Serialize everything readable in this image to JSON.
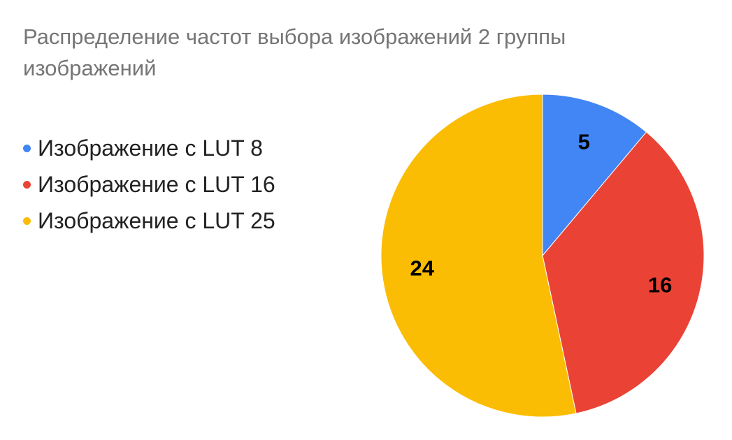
{
  "chart_data": {
    "type": "pie",
    "title": "Распределение частот выбора изображений 2 группы изображений",
    "categories": [
      "Изображение с LUT 8",
      "Изображение с LUT 16",
      "Изображение с LUT 25"
    ],
    "values": [
      5,
      16,
      24
    ],
    "colors": [
      "#4285f4",
      "#ea4335",
      "#fbbc04"
    ],
    "data_labels": [
      "5",
      "16",
      "24"
    ],
    "legend": "left",
    "start_angle": "12 o'clock",
    "direction": "clockwise"
  }
}
